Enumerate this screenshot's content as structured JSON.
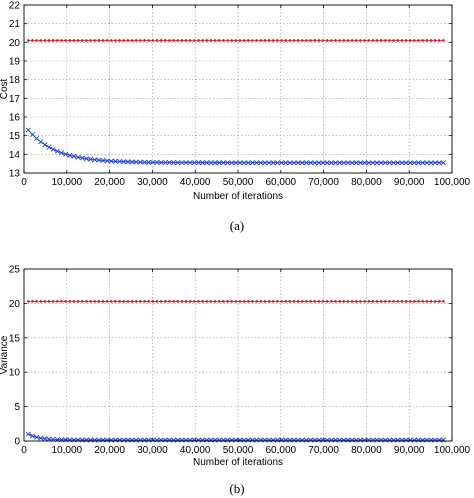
{
  "chart_data": [
    {
      "type": "line",
      "caption": "(a)",
      "xlabel": "Number of iterations",
      "ylabel": "Cost",
      "xlim": [
        0,
        100000
      ],
      "ylim": [
        13,
        22
      ],
      "xticks": [
        0,
        10000,
        20000,
        30000,
        40000,
        50000,
        60000,
        70000,
        80000,
        90000,
        100000
      ],
      "xtick_labels": [
        "0",
        "10,000",
        "20,000",
        "30,000",
        "40,000",
        "50,000",
        "60,000",
        "70,000",
        "80,000",
        "90,000",
        "100,000"
      ],
      "yticks": [
        13,
        14,
        15,
        16,
        17,
        18,
        19,
        20,
        21,
        22
      ],
      "ytick_labels": [
        "13",
        "14",
        "15",
        "16",
        "17",
        "18",
        "19",
        "20",
        "21",
        "22"
      ],
      "grid": true,
      "series": [
        {
          "color": "#d42020",
          "marker": "dot",
          "constant": 20.1
        },
        {
          "color": "#1f3fd0",
          "marker": "x",
          "start": 15.3,
          "end": 13.55,
          "decay": 6500
        }
      ]
    },
    {
      "type": "line",
      "caption": "(b)",
      "xlabel": "Number of iterations",
      "ylabel": "Variance",
      "xlim": [
        0,
        100000
      ],
      "ylim": [
        0,
        25
      ],
      "xticks": [
        0,
        10000,
        20000,
        30000,
        40000,
        50000,
        60000,
        70000,
        80000,
        90000,
        100000
      ],
      "xtick_labels": [
        "0",
        "10,000",
        "20,000",
        "30,000",
        "40,000",
        "50,000",
        "60,000",
        "70,000",
        "80,000",
        "90,000",
        "100,000"
      ],
      "yticks": [
        0,
        5,
        10,
        15,
        20,
        25
      ],
      "ytick_labels": [
        "0",
        "5",
        "10",
        "15",
        "20",
        "25"
      ],
      "grid": true,
      "series": [
        {
          "color": "#d42020",
          "marker": "dot",
          "constant": 20.3
        },
        {
          "color": "#1f3fd0",
          "marker": "x",
          "start": 1.0,
          "end": 0.15,
          "decay": 2500
        }
      ]
    }
  ]
}
